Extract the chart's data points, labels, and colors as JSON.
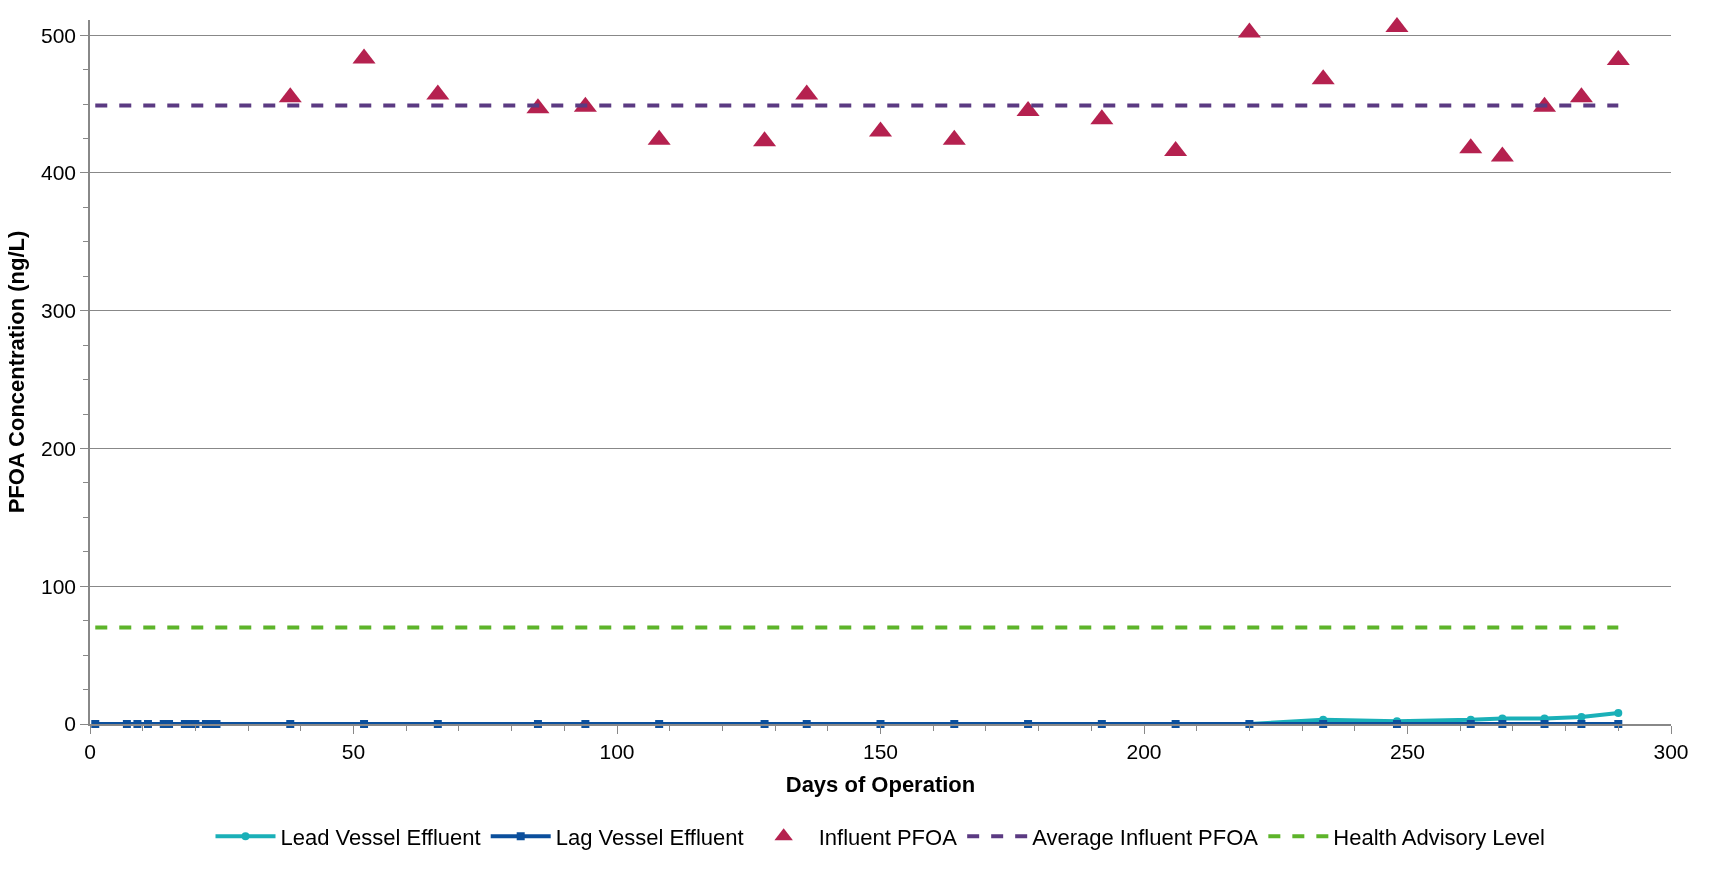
{
  "chart_data": {
    "type": "line",
    "xlabel": "Days of Operation",
    "ylabel": "PFOA Concentration (ng/L)",
    "xlim": [
      0,
      300
    ],
    "ylim": [
      0,
      511
    ],
    "xticks": [
      0,
      {
        "value": 10,
        "label": null
      },
      {
        "value": 20,
        "label": null
      },
      {
        "value": 30,
        "label": null
      },
      {
        "value": 40,
        "label": null
      },
      50,
      {
        "value": 60,
        "label": null
      },
      {
        "value": 70,
        "label": null
      },
      {
        "value": 80,
        "label": null
      },
      {
        "value": 90,
        "label": null
      },
      100,
      {
        "value": 110,
        "label": null
      },
      {
        "value": 120,
        "label": null
      },
      {
        "value": 130,
        "label": null
      },
      {
        "value": 140,
        "label": null
      },
      150,
      {
        "value": 160,
        "label": null
      },
      {
        "value": 170,
        "label": null
      },
      {
        "value": 180,
        "label": null
      },
      {
        "value": 190,
        "label": null
      },
      200,
      {
        "value": 210,
        "label": null
      },
      {
        "value": 220,
        "label": null
      },
      {
        "value": 230,
        "label": null
      },
      {
        "value": 240,
        "label": null
      },
      250,
      {
        "value": 260,
        "label": null
      },
      {
        "value": 270,
        "label": null
      },
      {
        "value": 280,
        "label": null
      },
      {
        "value": 290,
        "label": null
      },
      300
    ],
    "yticks": [
      0,
      {
        "value": 25,
        "label": null
      },
      {
        "value": 50,
        "label": null
      },
      {
        "value": 75,
        "label": null
      },
      100,
      {
        "value": 125,
        "label": null
      },
      {
        "value": 150,
        "label": null
      },
      {
        "value": 175,
        "label": null
      },
      200,
      {
        "value": 225,
        "label": null
      },
      {
        "value": 250,
        "label": null
      },
      {
        "value": 275,
        "label": null
      },
      300,
      {
        "value": 325,
        "label": null
      },
      {
        "value": 350,
        "label": null
      },
      {
        "value": 375,
        "label": null
      },
      400,
      {
        "value": 425,
        "label": null
      },
      {
        "value": 450,
        "label": null
      },
      {
        "value": 475,
        "label": null
      },
      500
    ],
    "grid": "y",
    "legend": "bottom",
    "series": [
      {
        "name": "Lead Vessel Effluent",
        "color": "#1ab0b8",
        "marker": "circle",
        "line_style": "solid",
        "x": [
          220,
          234,
          248,
          262,
          268,
          276,
          283,
          290
        ],
        "values": [
          0,
          3,
          2,
          3,
          4,
          4,
          5,
          8
        ]
      },
      {
        "name": "Lag Vessel Effluent",
        "color": "#0b4f9c",
        "marker": "square",
        "line_style": "solid",
        "x": [
          1,
          7,
          9,
          11,
          14,
          15,
          18,
          19,
          20,
          22,
          23,
          24,
          38,
          52,
          66,
          85,
          94,
          108,
          128,
          136,
          150,
          164,
          178,
          192,
          206,
          220,
          234,
          248,
          262,
          268,
          276,
          283,
          290
        ],
        "values": [
          0,
          0,
          0,
          0,
          0,
          0,
          0,
          0,
          0,
          0,
          0,
          0,
          0,
          0,
          0,
          0,
          0,
          0,
          0,
          0,
          0,
          0,
          0,
          0,
          0,
          0,
          0,
          0,
          0,
          0,
          0,
          0,
          0
        ]
      },
      {
        "name": "Influent PFOA",
        "color": "#b5214f",
        "type": "scatter",
        "marker": "triangle",
        "x": [
          38,
          52,
          66,
          85,
          94,
          108,
          128,
          136,
          150,
          164,
          178,
          192,
          206,
          220,
          234,
          248,
          262,
          268,
          276,
          283,
          290
        ],
        "values": [
          455,
          483,
          457,
          447,
          448,
          424,
          423,
          457,
          430,
          424,
          445,
          439,
          416,
          502,
          468,
          506,
          418,
          412,
          448,
          455,
          482
        ]
      },
      {
        "name": "Average Influent PFOA",
        "color": "#5b3a82",
        "marker": "none",
        "line_style": "dashed",
        "x": [
          1,
          290
        ],
        "values": [
          449,
          449
        ]
      },
      {
        "name": "Health Advisory Level",
        "color": "#5db42a",
        "marker": "none",
        "line_style": "dashed",
        "x": [
          1,
          290
        ],
        "values": [
          70,
          70
        ]
      }
    ]
  }
}
